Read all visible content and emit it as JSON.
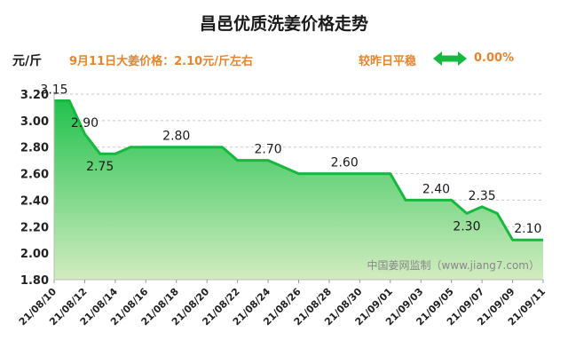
{
  "header": {
    "title": "昌邑优质洗姜价格走势",
    "unit": "元/斤",
    "price_note": "9月11日大姜价格：2.10元/斤左右",
    "trend_label": "较昨日平稳",
    "trend_icon": "double-arrow-icon",
    "trend_value": "0.00%"
  },
  "colors": {
    "accent": "#e8842a",
    "line": "#17b83e",
    "fill_top": "#22c24e",
    "fill_bottom": "#d2ecc0"
  },
  "watermark": "中国姜网监制（www.jiang7.com）",
  "chart_data": {
    "type": "area",
    "title": "昌邑优质洗姜价格走势",
    "xlabel": "",
    "ylabel": "元/斤",
    "ylim": [
      1.8,
      3.2
    ],
    "y_ticks": [
      "1.80",
      "2.00",
      "2.20",
      "2.40",
      "2.60",
      "2.80",
      "3.00",
      "3.20"
    ],
    "x_ticks": [
      "21/08/10",
      "21/08/12",
      "21/08/14",
      "21/08/16",
      "21/08/18",
      "21/08/20",
      "21/08/22",
      "21/08/24",
      "21/08/26",
      "21/08/28",
      "21/08/30",
      "21/09/01",
      "21/09/03",
      "21/09/05",
      "21/09/07",
      "21/09/09",
      "21/09/11"
    ],
    "grid": true,
    "x": [
      "08/10",
      "08/11",
      "08/12",
      "08/13",
      "08/14",
      "08/15",
      "08/16",
      "08/17",
      "08/18",
      "08/19",
      "08/20",
      "08/21",
      "08/22",
      "08/23",
      "08/24",
      "08/25",
      "08/26",
      "08/27",
      "08/28",
      "08/29",
      "08/30",
      "08/31",
      "09/01",
      "09/02",
      "09/03",
      "09/04",
      "09/05",
      "09/06",
      "09/07",
      "09/08",
      "09/09",
      "09/10",
      "09/11"
    ],
    "values": [
      3.15,
      3.15,
      2.9,
      2.75,
      2.75,
      2.8,
      2.8,
      2.8,
      2.8,
      2.8,
      2.8,
      2.8,
      2.7,
      2.7,
      2.7,
      2.65,
      2.6,
      2.6,
      2.6,
      2.6,
      2.6,
      2.6,
      2.6,
      2.4,
      2.4,
      2.4,
      2.4,
      2.3,
      2.35,
      2.3,
      2.1,
      2.1,
      2.1
    ],
    "data_labels": [
      {
        "i": 0,
        "text": "3.15"
      },
      {
        "i": 2,
        "text": "2.90"
      },
      {
        "i": 3,
        "text": "2.75"
      },
      {
        "i": 8,
        "text": "2.80"
      },
      {
        "i": 14,
        "text": "2.70"
      },
      {
        "i": 19,
        "text": "2.60"
      },
      {
        "i": 25,
        "text": "2.40"
      },
      {
        "i": 27,
        "text": "2.30"
      },
      {
        "i": 28,
        "text": "2.35"
      },
      {
        "i": 31,
        "text": "2.10"
      }
    ]
  }
}
